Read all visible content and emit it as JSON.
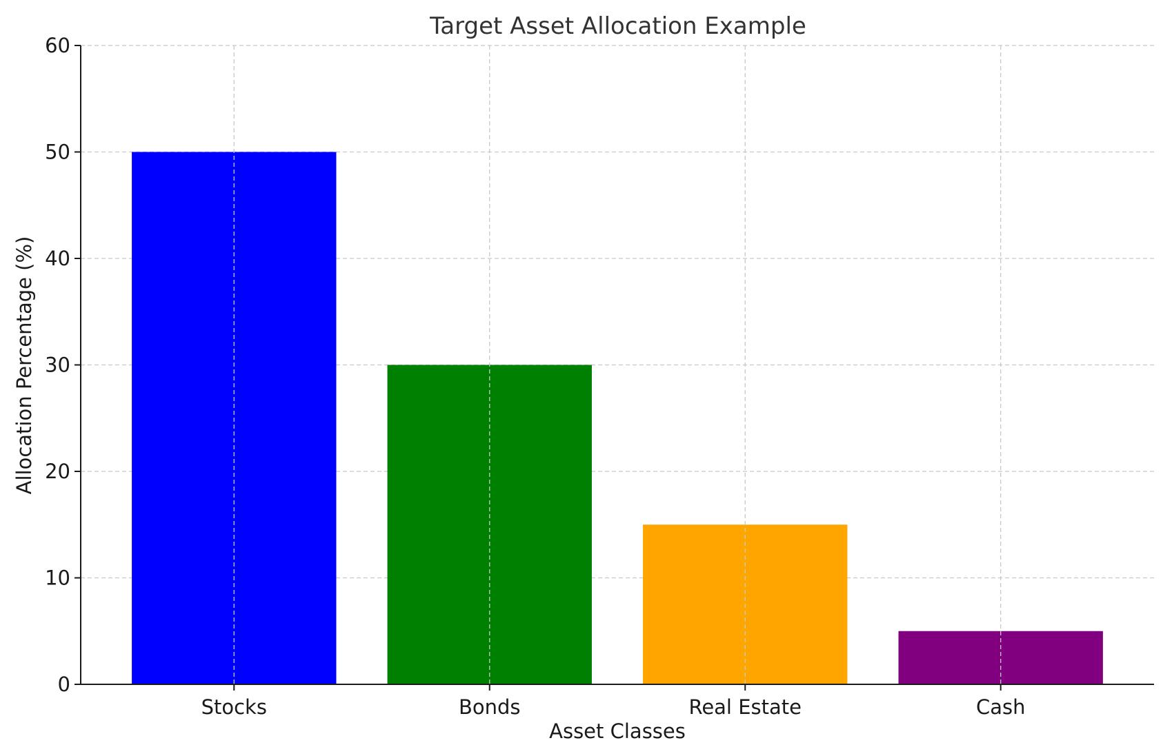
{
  "chart_data": {
    "type": "bar",
    "title": "Target Asset Allocation Example",
    "xlabel": "Asset Classes",
    "ylabel": "Allocation Percentage (%)",
    "categories": [
      "Stocks",
      "Bonds",
      "Real Estate",
      "Cash"
    ],
    "values": [
      50,
      30,
      15,
      5
    ],
    "colors": [
      "#0000ff",
      "#008000",
      "#ffa500",
      "#800080"
    ],
    "ylim": [
      0,
      60
    ],
    "yticks": [
      0,
      10,
      20,
      30,
      40,
      50,
      60
    ],
    "ytick_labels": [
      "0",
      "10",
      "20",
      "30",
      "40",
      "50",
      "60"
    ],
    "grid": true,
    "legend": "none"
  }
}
